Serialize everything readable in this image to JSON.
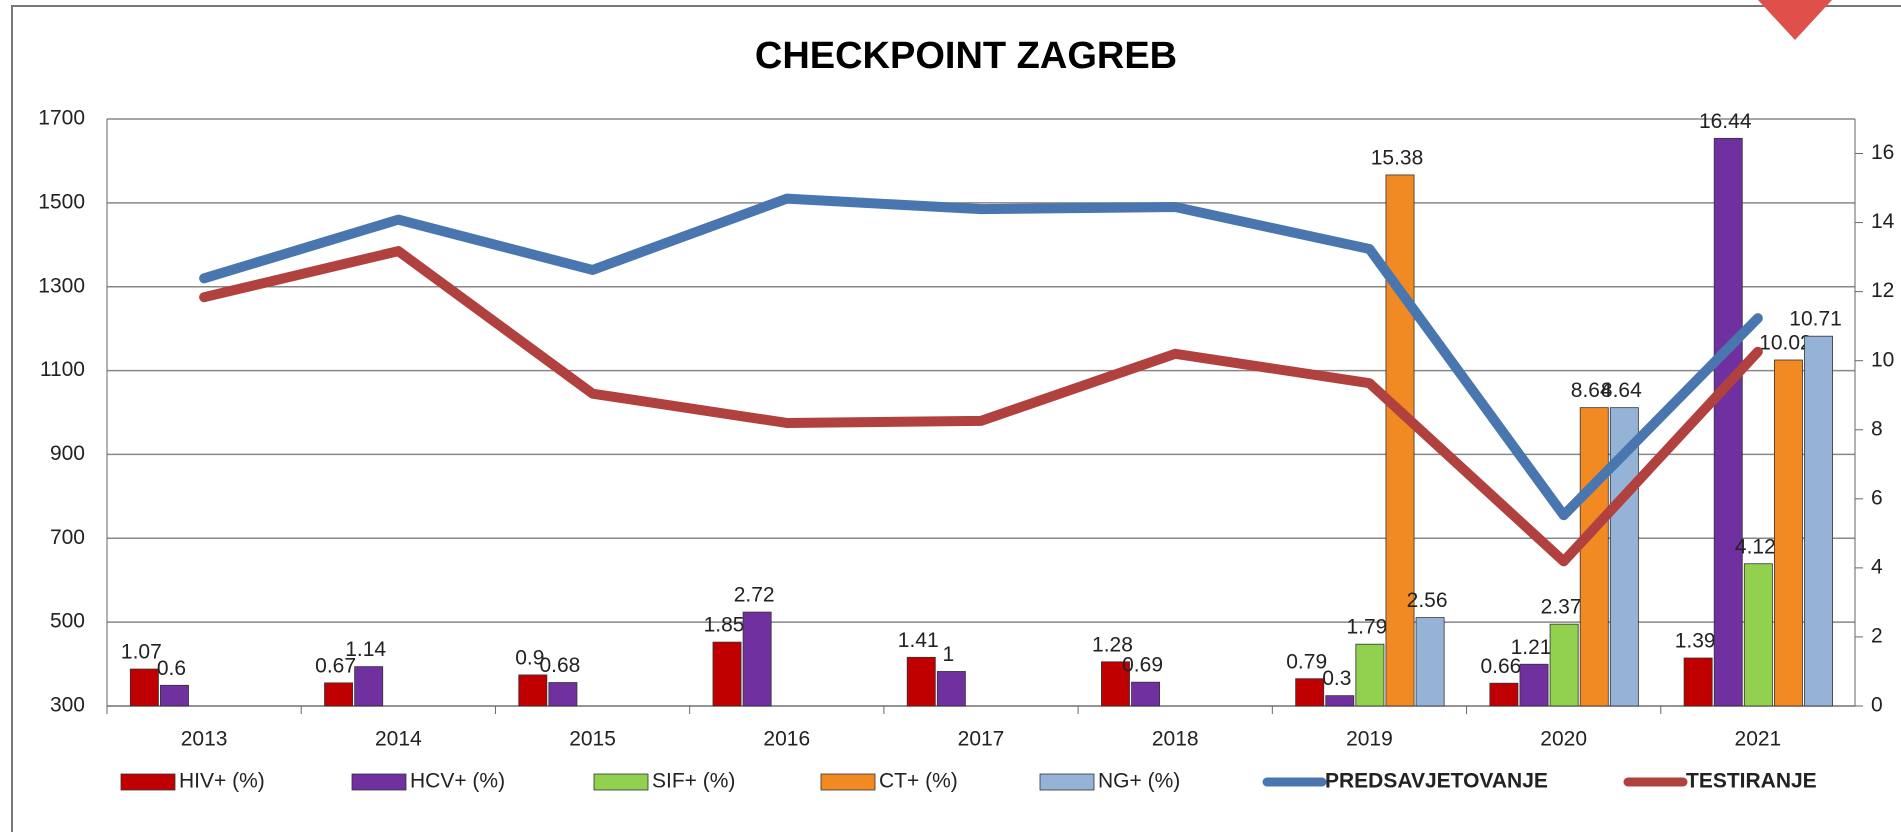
{
  "chart_data": {
    "type": "bar",
    "title": "CHECKPOINT ZAGREB",
    "categories": [
      "2013",
      "2014",
      "2015",
      "2016",
      "2017",
      "2018",
      "2019",
      "2020",
      "2021"
    ],
    "ylim": [
      300,
      1700
    ],
    "yticks": [
      300,
      500,
      700,
      900,
      1100,
      1300,
      1500,
      1700
    ],
    "y2lim": [
      0,
      17
    ],
    "y2ticks": [
      0,
      2,
      4,
      6,
      8,
      10,
      12,
      14,
      16
    ],
    "grid": true,
    "legend": "bottom",
    "series": [
      {
        "name": "HIV+ (%)",
        "color": "#c00000",
        "axis": "y2",
        "values": [
          1.07,
          0.67,
          0.9,
          1.85,
          1.41,
          1.28,
          0.79,
          0.66,
          1.39
        ]
      },
      {
        "name": "HCV+ (%)",
        "color": "#7030a0",
        "axis": "y2",
        "values": [
          0.6,
          1.14,
          0.68,
          2.72,
          1,
          0.69,
          0.3,
          1.21,
          16.44
        ]
      },
      {
        "name": "SIF+ (%)",
        "color": "#92d050",
        "axis": "y2",
        "values": [
          null,
          null,
          null,
          null,
          null,
          null,
          1.79,
          2.37,
          4.12
        ]
      },
      {
        "name": "CT+ (%)",
        "color": "#f28a24",
        "axis": "y2",
        "values": [
          null,
          null,
          null,
          null,
          null,
          null,
          15.38,
          8.64,
          10.02
        ]
      },
      {
        "name": "NG+ (%)",
        "color": "#95b3d7",
        "axis": "y2",
        "values": [
          null,
          null,
          null,
          null,
          null,
          null,
          2.56,
          8.64,
          10.71
        ]
      },
      {
        "name": "PREDSAVJETOVANJE",
        "color": "#4a76b0",
        "type": "line",
        "values": [
          1320,
          1460,
          1340,
          1510,
          1485,
          1490,
          1390,
          755,
          1225
        ]
      },
      {
        "name": "TESTIRANJE",
        "color": "#b0413e",
        "type": "line",
        "values": [
          1275,
          1385,
          1045,
          975,
          980,
          1140,
          1070,
          645,
          1145
        ]
      }
    ]
  }
}
